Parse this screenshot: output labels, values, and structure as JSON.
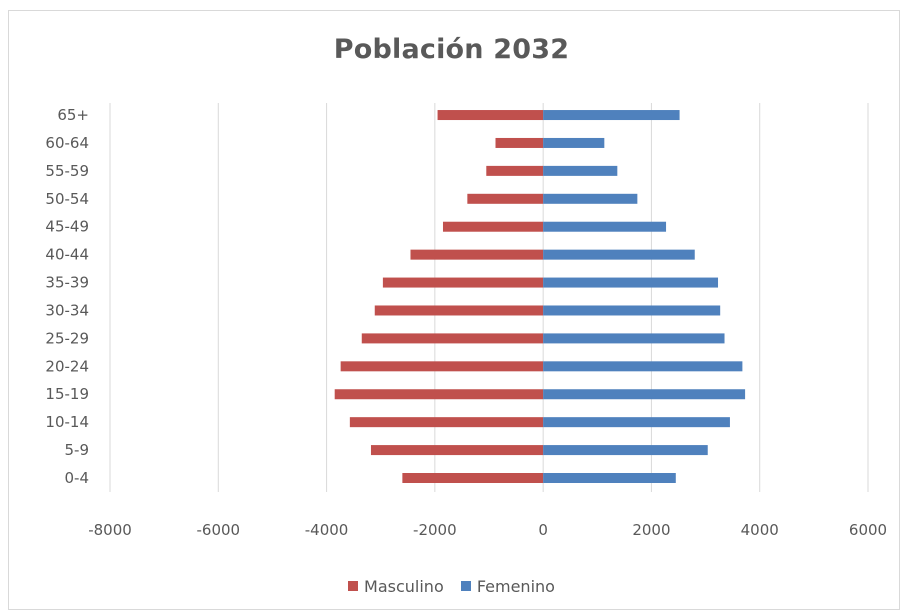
{
  "chart_data": {
    "type": "bar",
    "orientation": "horizontal",
    "title": "Población 2032",
    "categories": [
      "0-4",
      "5-9",
      "10-14",
      "15-19",
      "20-24",
      "25-29",
      "30-34",
      "35-39",
      "40-44",
      "45-49",
      "50-54",
      "55-59",
      "60-64",
      "65+"
    ],
    "series": [
      {
        "name": "Masculino",
        "color": "#c0504d",
        "values": [
          -2600,
          -3180,
          -3570,
          -3850,
          -3740,
          -3350,
          -3110,
          -2960,
          -2450,
          -1850,
          -1400,
          -1050,
          -880,
          -1950
        ]
      },
      {
        "name": "Femenino",
        "color": "#4f81bd",
        "values": [
          2450,
          3040,
          3450,
          3730,
          3680,
          3350,
          3270,
          3230,
          2800,
          2270,
          1740,
          1370,
          1130,
          2520
        ]
      }
    ],
    "xlim": [
      -8000,
      6000
    ],
    "xticks": [
      -8000,
      -6000,
      -4000,
      -2000,
      0,
      2000,
      4000,
      6000
    ],
    "xtick_labels": [
      "-8000",
      "-6000",
      "-4000",
      "-2000",
      "0",
      "2000",
      "4000",
      "6000"
    ],
    "grid": true,
    "legend_position": "bottom"
  }
}
